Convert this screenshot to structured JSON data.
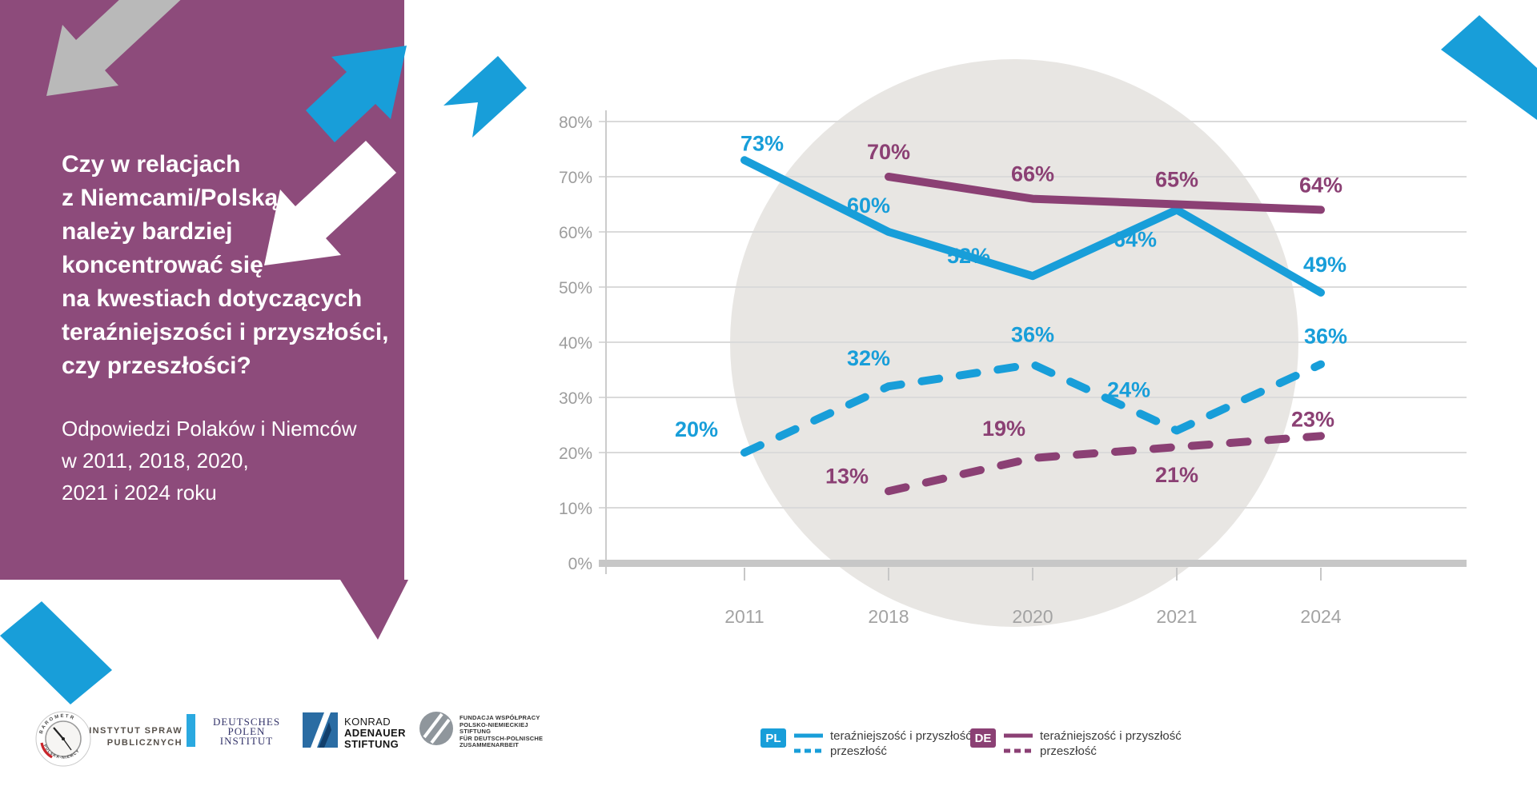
{
  "panel": {
    "bg_color": "#8d4b7b",
    "question_lines": [
      "Czy w relacjach",
      "z Niemcami/Polską",
      "należy bardziej",
      "koncentrować się",
      "na kwestiach dotyczących",
      "teraźniejszości i przyszłości,",
      "czy przeszłości?"
    ],
    "subtitle_lines": [
      "Odpowiedzi Polaków i Niemców",
      "w 2011, 2018, 2020,",
      "2021 i 2024 roku"
    ]
  },
  "colors": {
    "pl_blue": "#189ed9",
    "de_purple": "#8b4074",
    "panel_purple": "#8d4b7b",
    "grid_gray": "#dadada",
    "axis_gray": "#c7c7c7",
    "circle_gray": "#e8e6e3",
    "arrow_gray": "#b9b9b9"
  },
  "chart_data": {
    "type": "line",
    "x": [
      "2011",
      "2018",
      "2020",
      "2021",
      "2024"
    ],
    "series": [
      {
        "name": "PL teraźniejszość i przyszłość",
        "color": "#189ed9",
        "style": "solid",
        "values": [
          73,
          60,
          52,
          64,
          49
        ]
      },
      {
        "name": "PL przeszłość",
        "color": "#189ed9",
        "style": "dashed",
        "values": [
          20,
          32,
          36,
          24,
          36
        ]
      },
      {
        "name": "DE teraźniejszość i przyszłość",
        "color": "#8b4074",
        "style": "solid",
        "values": [
          null,
          70,
          66,
          65,
          64
        ]
      },
      {
        "name": "DE przeszłość",
        "color": "#8b4074",
        "style": "dashed",
        "values": [
          null,
          13,
          19,
          21,
          23
        ]
      }
    ],
    "ylim": [
      0,
      80
    ],
    "ytick_step": 10,
    "value_suffix": "%",
    "grid": true,
    "bg_circle_color": "#e8e6e3",
    "legend_position": "bottom-right"
  },
  "legend": {
    "groups": [
      {
        "badge": "PL",
        "color": "#189ed9",
        "items": [
          "teraźniejszość i przyszłość",
          "przeszłość"
        ]
      },
      {
        "badge": "DE",
        "color": "#8b4074",
        "items": [
          "teraźniejszość i przyszłość",
          "przeszłość"
        ]
      }
    ]
  },
  "logos": {
    "barometr": {
      "ring_top": "BAROMETR",
      "ring_bottom": "POLSKA-NIEMCY"
    },
    "isp": {
      "line1": "INSTYTUT SPRAW",
      "line2": "PUBLICZNYCH"
    },
    "dpi": {
      "line1": "DEUTSCHES",
      "line2": "POLEN",
      "line3": "INSTITUT"
    },
    "kas": {
      "line1": "KONRAD",
      "line2": "ADENAUER",
      "line3": "STIFTUNG"
    },
    "fwpn": {
      "lines": [
        "FUNDACJA WSPÓŁPRACY",
        "POLSKO-NIEMIECKIEJ",
        "STIFTUNG",
        "FÜR DEUTSCH-POLNISCHE",
        "ZUSAMMENARBEIT"
      ]
    }
  }
}
